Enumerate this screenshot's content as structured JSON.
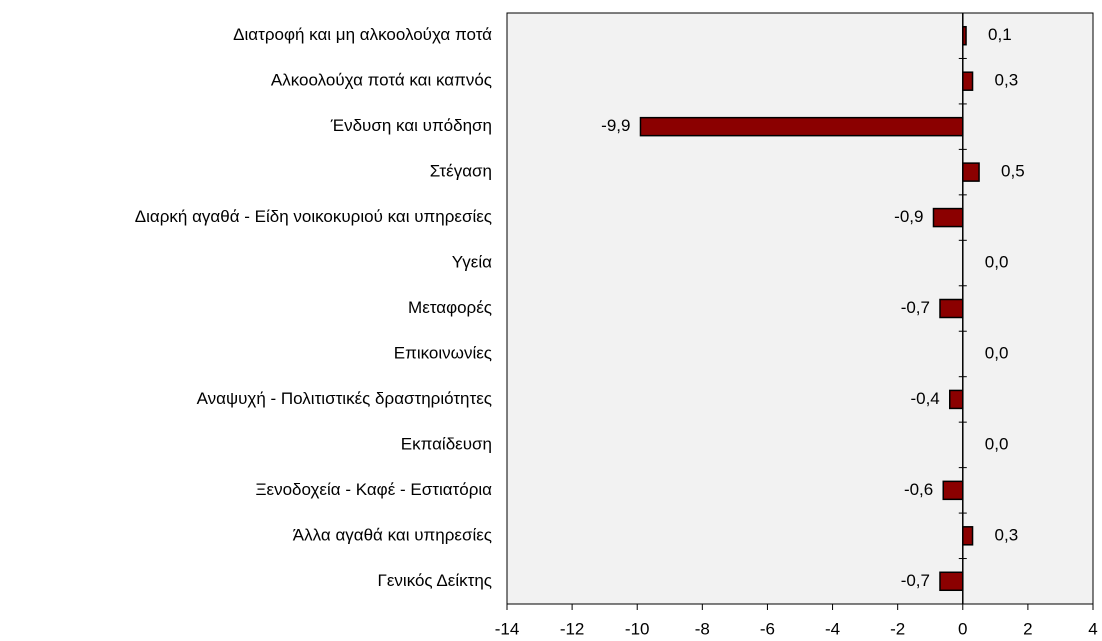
{
  "chart_data": {
    "type": "bar",
    "orientation": "horizontal",
    "categories": [
      "Διατροφή και μη αλκοολούχα ποτά",
      "Αλκοολούχα ποτά και καπνός",
      "Ένδυση και υπόδηση",
      "Στέγαση",
      "Διαρκή αγαθά - Είδη νοικοκυριού και υπηρεσίες",
      "Υγεία",
      "Μεταφορές",
      "Επικοινωνίες",
      "Αναψυχή - Πολιτιστικές δραστηριότητες",
      "Εκπαίδευση",
      "Ξενοδοχεία - Καφέ - Εστιατόρια",
      "Άλλα αγαθά και υπηρεσίες",
      "Γενικός Δείκτης"
    ],
    "values": [
      0.1,
      0.3,
      -9.9,
      0.5,
      -0.9,
      0.0,
      -0.7,
      0.0,
      -0.4,
      0.0,
      -0.6,
      0.3,
      -0.7
    ],
    "value_labels": [
      "0,1",
      "0,3",
      "-9,9",
      "0,5",
      "-0,9",
      "0,0",
      "-0,7",
      "0,0",
      "-0,4",
      "0,0",
      "-0,6",
      "0,3",
      "-0,7"
    ],
    "color": "#8b0000",
    "xlim": [
      -14,
      4
    ],
    "xticks": [
      -14,
      -12,
      -10,
      -8,
      -6,
      -4,
      -2,
      0,
      2,
      4
    ]
  }
}
